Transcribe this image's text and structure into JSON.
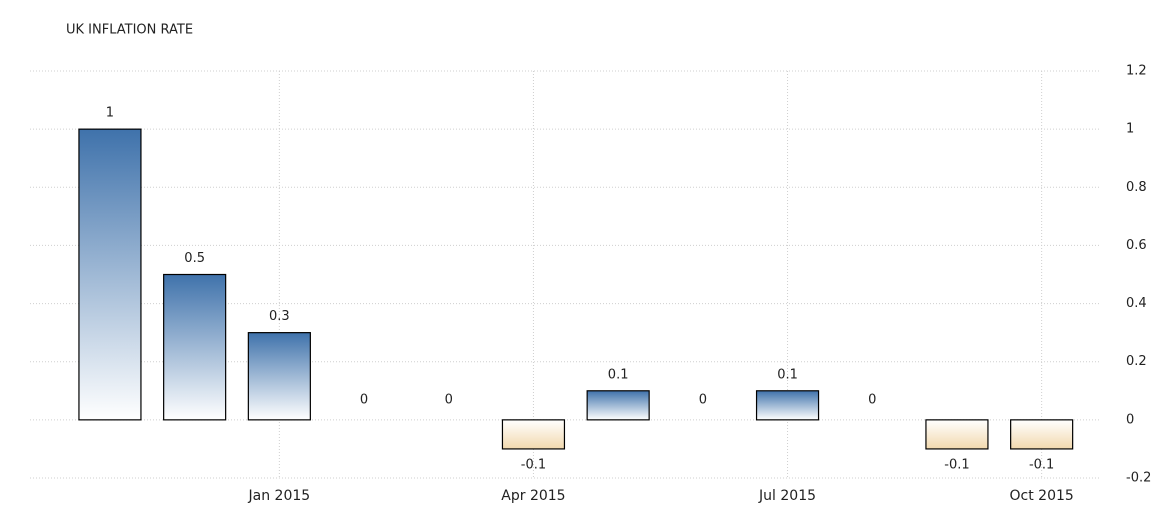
{
  "chart_data": {
    "type": "bar",
    "title": "UK INFLATION RATE",
    "categories": [
      null,
      null,
      "Jan 2015",
      null,
      null,
      "Apr 2015",
      null,
      null,
      "Jul 2015",
      null,
      null,
      "Oct 2015"
    ],
    "values": [
      1,
      0.5,
      0.3,
      0,
      0,
      -0.1,
      0.1,
      0,
      0.1,
      0,
      -0.1,
      -0.1
    ],
    "color": "#3f72ab",
    "negative_color": "#f2d9ae",
    "ylim": [
      -0.2,
      1.2
    ],
    "yticks": [
      -0.2,
      0,
      0.2,
      0.4,
      0.6,
      0.8,
      1,
      1.2
    ],
    "grid": true
  }
}
